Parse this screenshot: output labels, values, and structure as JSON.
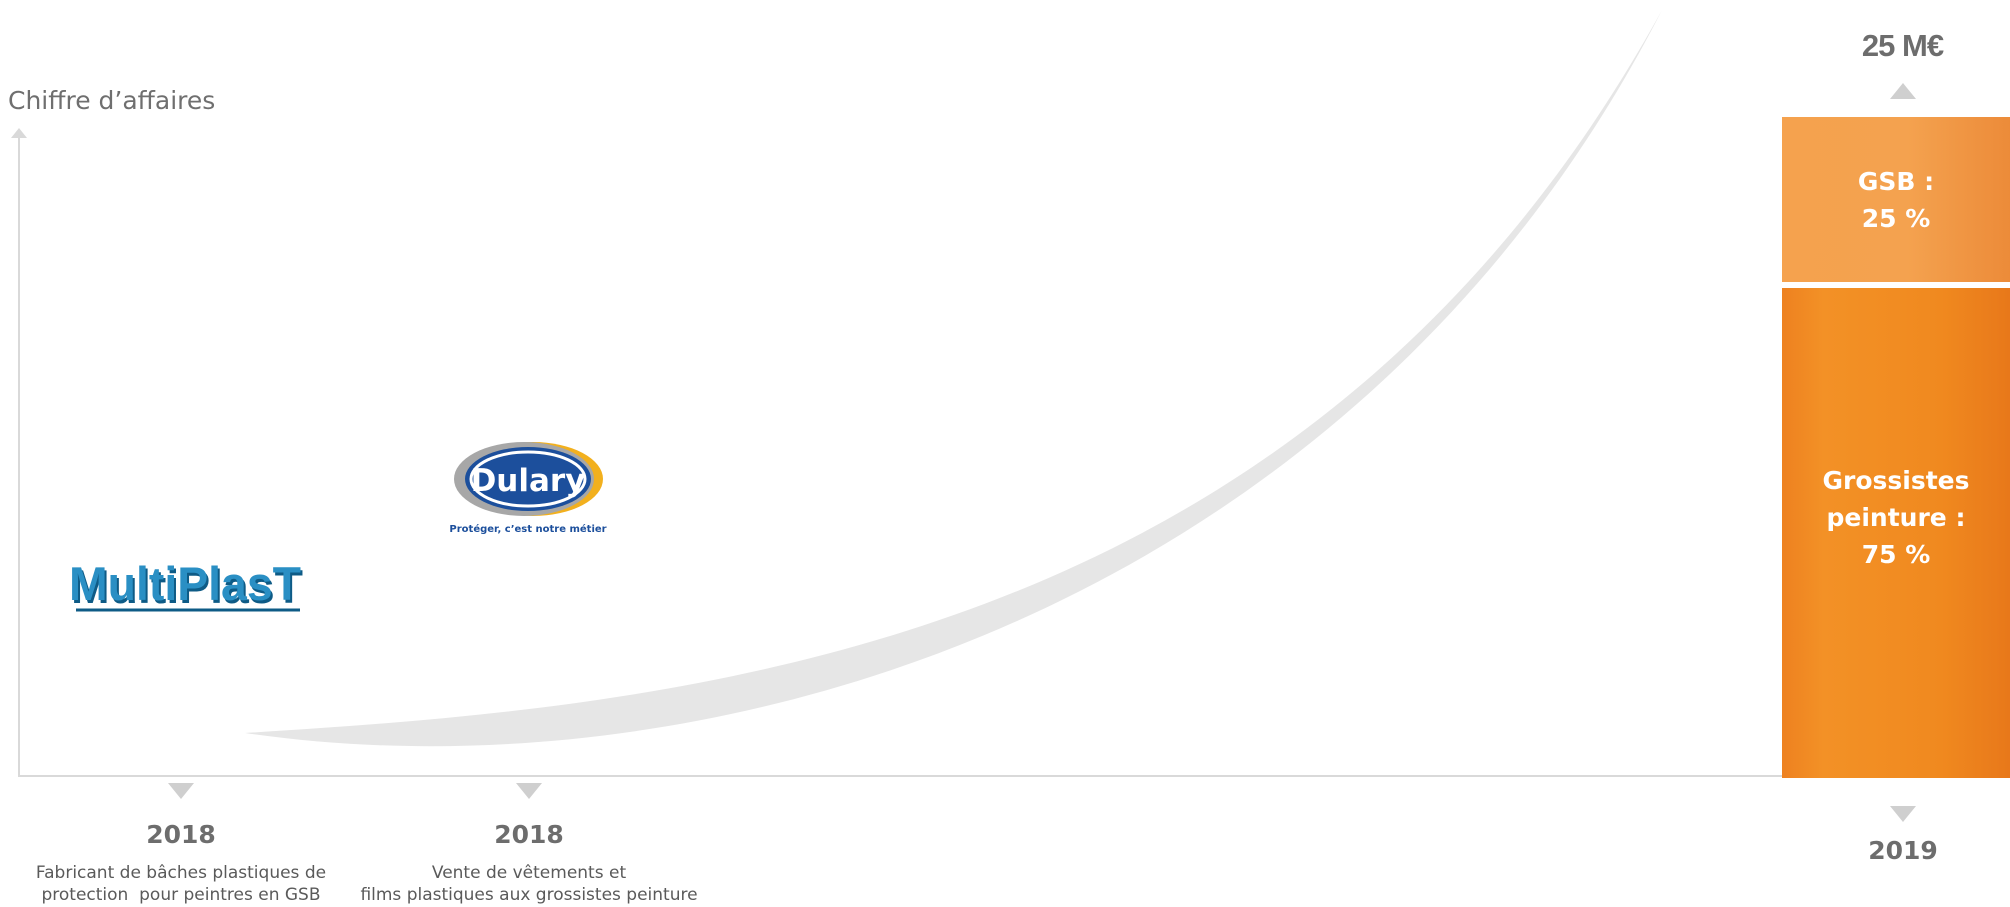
{
  "axis": {
    "y_label": "Chiffre d’affaires"
  },
  "milestones": [
    {
      "year": "2018",
      "caption": "Fabricant de bâches plastiques de\nprotection  pour peintres en GSB",
      "logo": "MultiPlast"
    },
    {
      "year": "2018",
      "caption": "Vente de vêtements et\nfilms plastiques aux grossistes peinture",
      "logo": "Dulary",
      "tagline": "Protéger, c’est notre métier"
    }
  ],
  "current": {
    "year": "2019",
    "total": "25 M€",
    "segments": [
      {
        "label": "GSB :\n25 %",
        "share": 25
      },
      {
        "label": "Grossistes\npeinture :\n75 %",
        "share": 75
      }
    ]
  },
  "colors": {
    "orange": "#f0891f",
    "light_orange": "#f4a24f",
    "swoosh": "#e6e6e6",
    "axis": "#d9d9d9",
    "marker": "#cfcfcf",
    "multiplast_blue": "#2a8fc4",
    "dulary_blue": "#1c4f9c",
    "dulary_gold": "#f2b01e"
  }
}
